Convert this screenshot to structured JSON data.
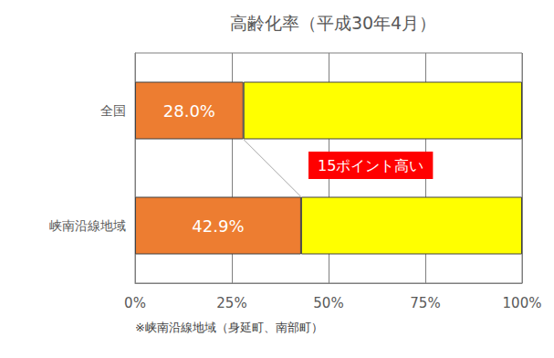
{
  "chart_data": {
    "type": "bar",
    "title": "高齢化率（平成30年4月）",
    "orientation": "horizontal",
    "stacked": true,
    "categories": [
      "全国",
      "峡南沿線地域"
    ],
    "series": [
      {
        "color": "#ED7D31",
        "values": [
          28.0,
          42.9
        ],
        "data_labels": true,
        "value_labels": [
          "28.0%",
          "42.9%"
        ]
      },
      {
        "color": "#FFFF00",
        "values": [
          72.0,
          57.1
        ]
      }
    ],
    "xlim": [
      0,
      100
    ],
    "xticks": [
      {
        "value": 0,
        "label": "0%"
      },
      {
        "value": 25,
        "label": "25%"
      },
      {
        "value": 50,
        "label": "50%"
      },
      {
        "value": 75,
        "label": "75%"
      },
      {
        "value": 100,
        "label": "100%"
      }
    ],
    "grid": true,
    "annotation": "15ポイント高い",
    "note": "※峡南沿線地域（身延町、南部町）"
  }
}
